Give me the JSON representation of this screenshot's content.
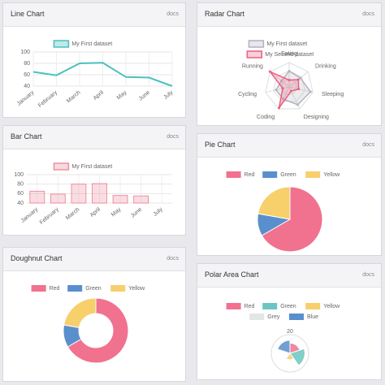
{
  "chart_data": [
    {
      "type": "line",
      "title": "Line Chart",
      "link": "docs",
      "categories": [
        "January",
        "February",
        "March",
        "April",
        "May",
        "June",
        "July"
      ],
      "series": [
        {
          "name": "My First dataset",
          "color": "#4bc0c0",
          "values": [
            65,
            59,
            80,
            81,
            56,
            55,
            40
          ]
        }
      ],
      "ylim": [
        40,
        100
      ],
      "yticks": [
        40,
        60,
        80,
        100
      ],
      "grid": true
    },
    {
      "type": "radar",
      "title": "Radar Chart",
      "link": "docs",
      "categories": [
        "Eating",
        "Drinking",
        "Sleeping",
        "Designing",
        "Coding",
        "Cycling",
        "Running"
      ],
      "series": [
        {
          "name": "My First dataset",
          "color": "#b1b3bd",
          "values": [
            65,
            59,
            90,
            81,
            56,
            55,
            40
          ]
        },
        {
          "name": "My Second dataset",
          "color": "#ec5f82",
          "values": [
            28,
            48,
            40,
            19,
            96,
            27,
            100
          ]
        }
      ],
      "rlim": [
        0,
        100
      ]
    },
    {
      "type": "bar",
      "title": "Bar Chart",
      "link": "docs",
      "categories": [
        "January",
        "February",
        "March",
        "April",
        "May",
        "June",
        "July"
      ],
      "series": [
        {
          "name": "My First dataset",
          "color": "#ef8fa2",
          "values": [
            65,
            59,
            80,
            81,
            56,
            55,
            40
          ]
        }
      ],
      "ylim": [
        40,
        100
      ],
      "yticks": [
        40,
        60,
        80,
        100
      ],
      "grid": true
    },
    {
      "type": "pie",
      "title": "Pie Chart",
      "link": "docs",
      "categories": [
        "Red",
        "Green",
        "Yellow"
      ],
      "values": [
        300,
        50,
        100
      ],
      "colors": [
        "#f0728e",
        "#5a8fcd",
        "#f7cf6b"
      ]
    },
    {
      "type": "doughnut",
      "title": "Doughnut Chart",
      "link": "docs",
      "categories": [
        "Red",
        "Green",
        "Yellow"
      ],
      "values": [
        300,
        50,
        100
      ],
      "colors": [
        "#f0728e",
        "#5a8fcd",
        "#f7cf6b"
      ]
    },
    {
      "type": "polar",
      "title": "Polar Area Chart",
      "link": "docs",
      "categories": [
        "Red",
        "Green",
        "Yellow",
        "Grey",
        "Blue"
      ],
      "values": [
        11,
        16,
        7,
        3,
        14
      ],
      "colors": [
        "#f0728e",
        "#6cc5c0",
        "#f7cf6b",
        "#e4e5e7",
        "#5a8fcd"
      ],
      "rlim": [
        0,
        20
      ],
      "rticks": [
        20
      ]
    }
  ]
}
